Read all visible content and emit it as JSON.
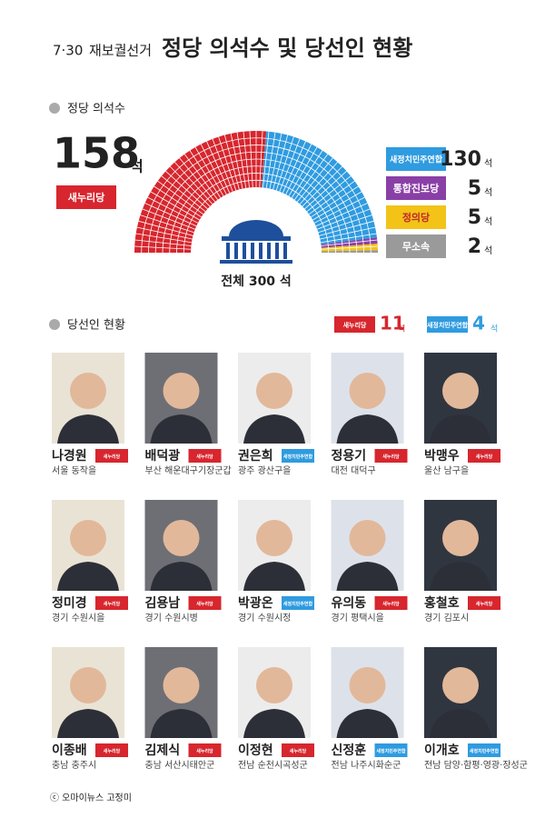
{
  "header": {
    "date": "7·30",
    "subtitle": "재보궐선거",
    "title": "정당 의석수 및 당선인 현황"
  },
  "chart_data": {
    "type": "parliament",
    "title": "정당 의석수",
    "total_label": "전체 300 석",
    "unit": "석",
    "categories": [
      "새누리당",
      "새정치민주연합",
      "통합진보당",
      "정의당",
      "무소속"
    ],
    "values": [
      158,
      130,
      5,
      5,
      2
    ],
    "colors": [
      "#d7262e",
      "#2f9be0",
      "#8a3fa6",
      "#f3c318",
      "#9a9a9a"
    ]
  },
  "winners": {
    "title": "당선인 현황",
    "unit": "석",
    "tally": [
      {
        "party": "새누리당",
        "count": 11
      },
      {
        "party": "새정치민주연합",
        "count": 4
      }
    ],
    "items": [
      {
        "name": "나경원",
        "district": "서울 동작을",
        "party": "새누리당"
      },
      {
        "name": "배덕광",
        "district": "부산 해운대구기장군갑",
        "party": "새누리당"
      },
      {
        "name": "권은희",
        "district": "광주 광산구을",
        "party": "새정치민주연합"
      },
      {
        "name": "정용기",
        "district": "대전 대덕구",
        "party": "새누리당"
      },
      {
        "name": "박맹우",
        "district": "울산 남구을",
        "party": "새누리당"
      },
      {
        "name": "정미경",
        "district": "경기 수원시을",
        "party": "새누리당"
      },
      {
        "name": "김용남",
        "district": "경기 수원시병",
        "party": "새누리당"
      },
      {
        "name": "박광온",
        "district": "경기 수원시정",
        "party": "새정치민주연합"
      },
      {
        "name": "유의동",
        "district": "경기 평택시을",
        "party": "새누리당"
      },
      {
        "name": "홍철호",
        "district": "경기 김포시",
        "party": "새누리당"
      },
      {
        "name": "이종배",
        "district": "충남 충주시",
        "party": "새누리당"
      },
      {
        "name": "김제식",
        "district": "충남 서산시태안군",
        "party": "새누리당"
      },
      {
        "name": "이정현",
        "district": "전남 순천시곡성군",
        "party": "새누리당"
      },
      {
        "name": "신정훈",
        "district": "전남 나주시화순군",
        "party": "새정치민주연합"
      },
      {
        "name": "이개호",
        "district": "전남 담양·함평·영광·장성군",
        "party": "새정치민주연합"
      }
    ]
  },
  "footer": "ⓒ 오마이뉴스 고정미"
}
